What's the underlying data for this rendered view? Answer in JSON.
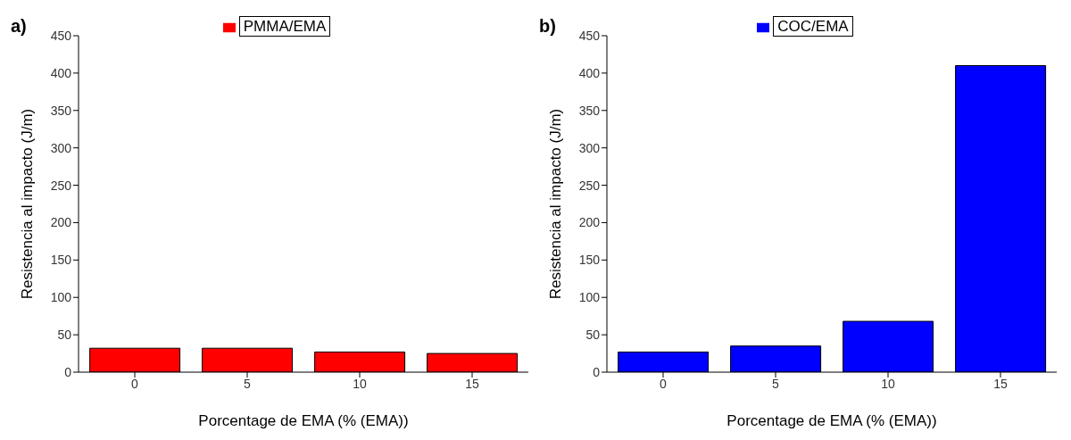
{
  "chart_data": [
    {
      "type": "bar",
      "title": "a)",
      "xlabel": "Porcentage de EMA (% (EMA))",
      "ylabel": "Resistencia al impacto (J/m)",
      "categories": [
        "0",
        "5",
        "10",
        "15"
      ],
      "series": [
        {
          "name": "PMMA/EMA",
          "color": "#ff0000",
          "values": [
            32,
            32,
            27,
            25
          ]
        }
      ],
      "ylim": [
        0,
        450
      ],
      "yticks": [
        0,
        50,
        100,
        150,
        200,
        250,
        300,
        350,
        400,
        450
      ],
      "legend": "top",
      "grid": false
    },
    {
      "type": "bar",
      "title": "b)",
      "xlabel": "Porcentage de EMA (% (EMA))",
      "ylabel": "Resistencia al impacto (J/m)",
      "categories": [
        "0",
        "5",
        "10",
        "15"
      ],
      "series": [
        {
          "name": "COC/EMA",
          "color": "#0000ff",
          "values": [
            27,
            35,
            68,
            410
          ]
        }
      ],
      "ylim": [
        0,
        450
      ],
      "yticks": [
        0,
        50,
        100,
        150,
        200,
        250,
        300,
        350,
        400,
        450
      ],
      "legend": "top",
      "grid": false
    }
  ]
}
